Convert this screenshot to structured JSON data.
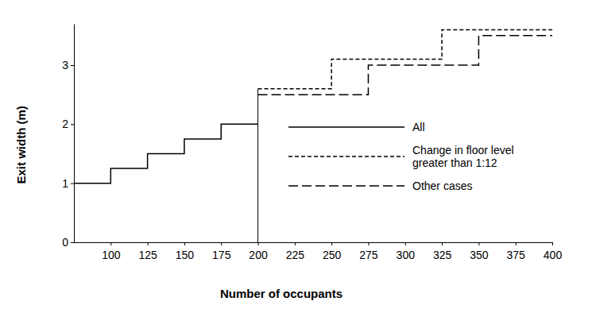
{
  "chart_data": {
    "type": "line",
    "x_label": "Number of occupants",
    "y_label": "Exit width (m)",
    "xlim": [
      75,
      400
    ],
    "xticks": [
      100,
      125,
      150,
      175,
      200,
      225,
      250,
      275,
      300,
      325,
      350,
      375,
      400
    ],
    "ylim": [
      0,
      3.7
    ],
    "yticks": [
      0,
      1,
      2,
      3
    ],
    "vline": 200,
    "legend": "right",
    "series": [
      {
        "name": "All",
        "type": "step",
        "line_style": "solid",
        "color": "#000000",
        "x": [
          75,
          100,
          125,
          150,
          175,
          200
        ],
        "values": [
          1,
          1.25,
          1.5,
          1.75,
          2,
          2
        ]
      },
      {
        "name": "Change in floor level\ngreater than 1:12",
        "type": "step",
        "line_style": "dashed",
        "color": "#000000",
        "x": [
          200,
          250,
          325,
          400
        ],
        "values": [
          2.6,
          3.1,
          3.6,
          3.6
        ]
      },
      {
        "name": "Other cases",
        "type": "step",
        "line_style": "longdash",
        "color": "#000000",
        "x": [
          200,
          275,
          350,
          400
        ],
        "values": [
          2.5,
          3.0,
          3.5,
          3.5
        ]
      }
    ]
  }
}
